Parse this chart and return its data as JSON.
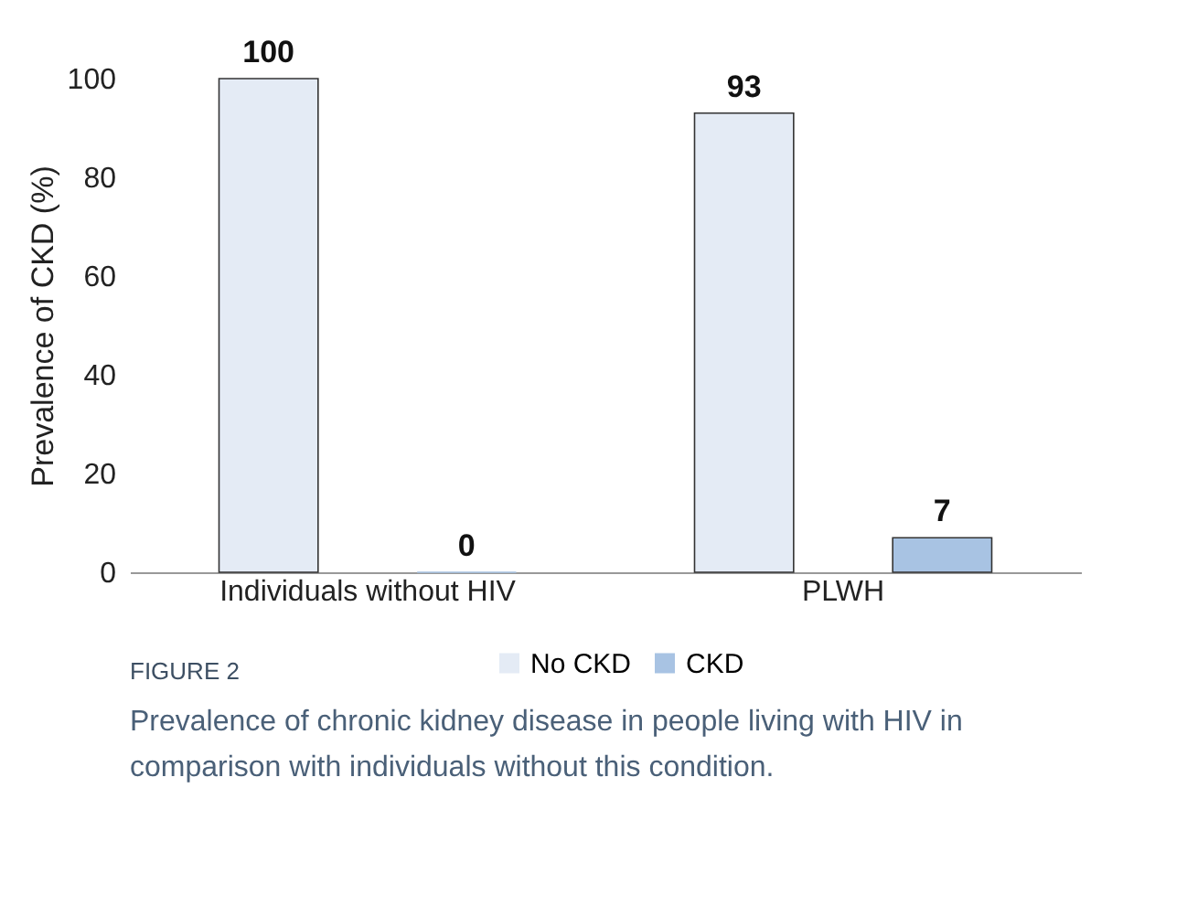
{
  "chart_data": {
    "type": "bar",
    "categories": [
      "Individuals without HIV",
      "PLWH"
    ],
    "series": [
      {
        "name": "No CKD",
        "color": "#e4ebf5",
        "values": [
          100,
          93
        ]
      },
      {
        "name": "CKD",
        "color": "#a8c3e3",
        "values": [
          0,
          7
        ]
      }
    ],
    "ylabel": "Prevalence of CKD (%)",
    "ylim": [
      0,
      100
    ],
    "yticks": [
      0,
      20,
      40,
      60,
      80,
      100
    ],
    "grid": false,
    "legend": "bottom",
    "data_labels": true,
    "annotations": [
      "FIGURE 2",
      "Prevalence of chronic kidney disease in people living with HIV in comparison with individuals without this condition."
    ]
  }
}
